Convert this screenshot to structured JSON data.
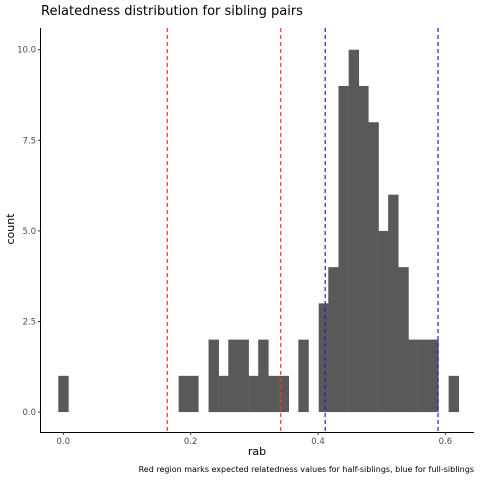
{
  "chart_data": {
    "type": "bar",
    "title": "Relatedness distribution for sibling pairs",
    "xlabel": "rab",
    "ylabel": "count",
    "caption": "Red region marks expected relatedness values for half-siblings, blue for full-siblings",
    "xlim": [
      -0.035,
      0.645
    ],
    "ylim": [
      -0.55,
      10.6
    ],
    "x_ticks": [
      0.0,
      0.2,
      0.4,
      0.6
    ],
    "x_tick_labels": [
      "0.0",
      "0.2",
      "0.4",
      "0.6"
    ],
    "y_ticks": [
      0.0,
      2.5,
      5.0,
      7.5,
      10.0
    ],
    "y_tick_labels": [
      "0.0",
      "2.5",
      "5.0",
      "7.5",
      "10.0"
    ],
    "bin_width": 0.0157,
    "bins": [
      {
        "x": 0.0,
        "count": 1
      },
      {
        "x": 0.189,
        "count": 1
      },
      {
        "x": 0.204,
        "count": 1
      },
      {
        "x": 0.236,
        "count": 2
      },
      {
        "x": 0.252,
        "count": 1
      },
      {
        "x": 0.267,
        "count": 2
      },
      {
        "x": 0.283,
        "count": 2
      },
      {
        "x": 0.299,
        "count": 1
      },
      {
        "x": 0.314,
        "count": 2
      },
      {
        "x": 0.33,
        "count": 1
      },
      {
        "x": 0.346,
        "count": 1
      },
      {
        "x": 0.377,
        "count": 2
      },
      {
        "x": 0.409,
        "count": 3
      },
      {
        "x": 0.424,
        "count": 4
      },
      {
        "x": 0.44,
        "count": 9
      },
      {
        "x": 0.456,
        "count": 10
      },
      {
        "x": 0.471,
        "count": 9
      },
      {
        "x": 0.487,
        "count": 8
      },
      {
        "x": 0.503,
        "count": 5
      },
      {
        "x": 0.518,
        "count": 6
      },
      {
        "x": 0.534,
        "count": 4
      },
      {
        "x": 0.55,
        "count": 2
      },
      {
        "x": 0.566,
        "count": 2
      },
      {
        "x": 0.581,
        "count": 2
      },
      {
        "x": 0.613,
        "count": 1
      }
    ],
    "vlines": [
      {
        "x": 0.1633,
        "color": "#ff3030"
      },
      {
        "x": 0.3415,
        "color": "#ff3030"
      },
      {
        "x": 0.4113,
        "color": "#2020cc"
      },
      {
        "x": 0.5885,
        "color": "#2020cc"
      }
    ],
    "bar_color": "#595959",
    "grid": false
  }
}
